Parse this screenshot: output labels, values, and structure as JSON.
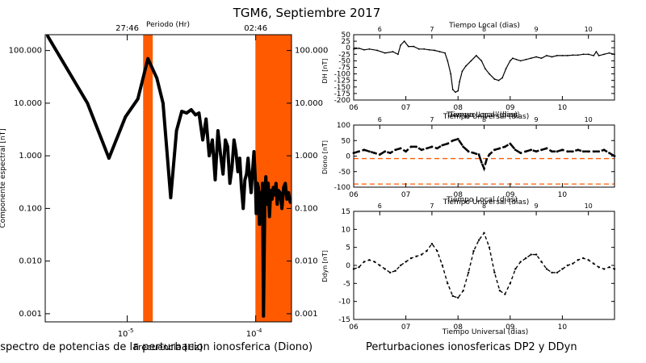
{
  "figure": {
    "title": "TGM6, Septiembre 2017",
    "caption_left": "Espectro de potencias de la perturbacion ionosferica (Diono)",
    "caption_right": "Perturbaciones ionosfericas DP2 y DDyn"
  },
  "colors": {
    "band": "#ff5a00",
    "line": "#000000",
    "dashed": "#ff5a00"
  },
  "chart_data": [
    {
      "type": "line",
      "name": "spectrum",
      "xlabel": "Frecuencia [Hz]",
      "ylabel": "Componente espectral [nT]",
      "top_axis_label": "Periodo (Hr)",
      "top_tick_labels": [
        "27:46",
        "02:46"
      ],
      "top_tick_freqs": [
        1e-05,
        0.0001
      ],
      "x_scale": "log",
      "y_scale": "log",
      "xlim": [
        2.3e-06,
        0.00019
      ],
      "ylim": [
        0.0007,
        200
      ],
      "x_tick_labels": [
        "10^-5",
        "10^-4"
      ],
      "y_tick_labels": [
        "100.000",
        "10.000",
        "1.000",
        "0.100",
        "0.010",
        "0.001"
      ],
      "bands": [
        [
          1.33e-05,
          1.58e-05
        ],
        [
          9.95e-05,
          0.00019
        ]
      ],
      "series": [
        {
          "x": [
            2.4e-06,
            4.9e-06,
            7.2e-06,
            9.7e-06,
            1.21e-05,
            1.45e-05,
            1.7e-05,
            1.9e-05,
            2.18e-05,
            2.42e-05,
            2.66e-05,
            2.9e-05,
            3.15e-05,
            3.4e-05,
            3.62e-05,
            3.87e-05,
            4.11e-05,
            4.35e-05,
            4.6e-05,
            4.84e-05,
            5.08e-05,
            5.32e-05,
            5.57e-05,
            5.81e-05,
            6.05e-05,
            6.3e-05,
            6.54e-05,
            6.78e-05,
            7.02e-05,
            7.27e-05,
            7.51e-05,
            7.75e-05,
            8e-05,
            8.24e-05,
            8.48e-05,
            8.72e-05,
            8.97e-05,
            9.21e-05,
            9.45e-05,
            9.7e-05,
            9.94e-05,
            0.000101,
            0.000103,
            0.000105,
            0.000107,
            0.000109,
            0.000111,
            0.000113,
            0.000115,
            0.000118,
            0.00012,
            0.000123,
            0.000125,
            0.000128,
            0.000131,
            0.000134,
            0.000137,
            0.00014,
            0.000144,
            0.000147,
            0.00015,
            0.000155,
            0.00016,
            0.000165,
            0.00017,
            0.000175,
            0.00018,
            0.000186
          ],
          "y": [
            190,
            10,
            0.9,
            5.5,
            12,
            70,
            30,
            10,
            0.16,
            3,
            7,
            6.5,
            7.5,
            6,
            6.5,
            2,
            5,
            1,
            2,
            0.35,
            3,
            1.1,
            0.45,
            2,
            1.5,
            0.3,
            0.6,
            2,
            1.2,
            0.5,
            0.9,
            0.25,
            0.1,
            0.35,
            0.45,
            0.9,
            0.4,
            0.2,
            0.5,
            1.2,
            0.35,
            0.08,
            0.3,
            0.25,
            0.05,
            0.2,
            0.06,
            0.3,
            0.0009,
            0.2,
            0.4,
            0.12,
            0.3,
            0.07,
            0.22,
            0.15,
            0.25,
            0.18,
            0.3,
            0.12,
            0.22,
            0.2,
            0.1,
            0.25,
            0.3,
            0.15,
            0.2,
            0.13
          ]
        }
      ]
    },
    {
      "type": "line",
      "name": "dh",
      "ylabel": "DH [nT]",
      "top_axis_label": "Tiempo Local (dias)",
      "top_tick_labels": [
        "6",
        "7",
        "8",
        "9",
        "10"
      ],
      "x_tick_labels": [
        "06",
        "07",
        "08",
        "09",
        "10"
      ],
      "xlim": [
        6,
        11
      ],
      "ylim": [
        -200,
        50
      ],
      "y_ticks": [
        50,
        25,
        0,
        -25,
        -50,
        -75,
        -100,
        -125,
        -150,
        -175,
        -200
      ],
      "series": [
        {
          "x": [
            6,
            6.1,
            6.2,
            6.3,
            6.45,
            6.6,
            6.75,
            6.85,
            6.9,
            6.97,
            7.05,
            7.15,
            7.25,
            7.35,
            7.45,
            7.55,
            7.65,
            7.75,
            7.8,
            7.86,
            7.9,
            7.95,
            8,
            8.03,
            8.08,
            8.15,
            8.25,
            8.35,
            8.45,
            8.52,
            8.6,
            8.7,
            8.78,
            8.85,
            8.92,
            9,
            9.05,
            9.12,
            9.2,
            9.3,
            9.4,
            9.5,
            9.6,
            9.7,
            9.8,
            9.9,
            10,
            10.1,
            10.2,
            10.3,
            10.4,
            10.5,
            10.6,
            10.65,
            10.7,
            10.8,
            10.9,
            11
          ],
          "y": [
            -5,
            -2,
            -8,
            -5,
            -10,
            -20,
            -15,
            -25,
            10,
            25,
            5,
            5,
            -5,
            -5,
            -8,
            -10,
            -15,
            -20,
            -50,
            -100,
            -160,
            -170,
            -165,
            -130,
            -90,
            -70,
            -50,
            -30,
            -50,
            -80,
            -100,
            -120,
            -125,
            -115,
            -80,
            -50,
            -40,
            -45,
            -50,
            -45,
            -40,
            -35,
            -40,
            -30,
            -35,
            -30,
            -30,
            -30,
            -28,
            -28,
            -25,
            -25,
            -30,
            -15,
            -30,
            -25,
            -20,
            -25
          ]
        }
      ]
    },
    {
      "type": "line",
      "name": "diono",
      "ylabel": "Diono [nT]",
      "top_axis_label": "Tiempo Local (dias)",
      "top_tick_labels": [
        "6",
        "7",
        "8",
        "9",
        "10"
      ],
      "x_tick_labels": [
        "06",
        "07",
        "08",
        "09",
        "10"
      ],
      "overlay_labels": [
        "Tiempo Universal (dias)"
      ],
      "xlim": [
        6,
        11
      ],
      "ylim": [
        -100,
        100
      ],
      "y_ticks": [
        100,
        50,
        0,
        -50,
        -100
      ],
      "thresholds": [
        -8,
        -90
      ],
      "series": [
        {
          "x": [
            6,
            6.1,
            6.2,
            6.3,
            6.4,
            6.5,
            6.6,
            6.7,
            6.8,
            6.9,
            7,
            7.1,
            7.2,
            7.3,
            7.4,
            7.5,
            7.6,
            7.7,
            7.8,
            7.9,
            8,
            8.1,
            8.2,
            8.3,
            8.4,
            8.45,
            8.5,
            8.55,
            8.6,
            8.7,
            8.8,
            8.9,
            9,
            9.1,
            9.2,
            9.3,
            9.4,
            9.5,
            9.6,
            9.7,
            9.8,
            9.9,
            10,
            10.1,
            10.2,
            10.3,
            10.4,
            10.5,
            10.6,
            10.7,
            10.8,
            10.9,
            11
          ],
          "y": [
            10,
            15,
            20,
            15,
            10,
            5,
            15,
            10,
            20,
            25,
            15,
            30,
            30,
            20,
            25,
            30,
            25,
            35,
            40,
            50,
            55,
            30,
            15,
            10,
            5,
            -20,
            -40,
            -10,
            5,
            20,
            25,
            30,
            40,
            20,
            10,
            15,
            20,
            15,
            20,
            25,
            15,
            15,
            20,
            15,
            15,
            20,
            15,
            15,
            15,
            15,
            20,
            10,
            0
          ]
        }
      ]
    },
    {
      "type": "line",
      "name": "ddyn",
      "ylabel": "Ddyn [nT]",
      "top_axis_label": "Tiempo Local (dias)",
      "top_tick_labels": [
        "6",
        "7",
        "8",
        "9",
        "10"
      ],
      "x_tick_labels": [
        "06",
        "07",
        "08",
        "09",
        "10"
      ],
      "overlay_labels": [
        "Tiempo Universal (dias)",
        "Tiempo Universal (dias)"
      ],
      "xlim": [
        6,
        11
      ],
      "ylim": [
        -15,
        15
      ],
      "y_ticks": [
        15,
        10,
        5,
        0,
        -5,
        -10,
        -15
      ],
      "series": [
        {
          "x": [
            6,
            6.1,
            6.2,
            6.3,
            6.4,
            6.5,
            6.6,
            6.7,
            6.8,
            6.9,
            7,
            7.1,
            7.2,
            7.3,
            7.4,
            7.5,
            7.6,
            7.7,
            7.8,
            7.9,
            8,
            8.1,
            8.2,
            8.3,
            8.4,
            8.5,
            8.6,
            8.7,
            8.8,
            8.9,
            9,
            9.1,
            9.2,
            9.3,
            9.4,
            9.5,
            9.6,
            9.7,
            9.8,
            9.9,
            10,
            10.1,
            10.2,
            10.3,
            10.4,
            10.5,
            10.6,
            10.7,
            10.8,
            10.9,
            11
          ],
          "y": [
            -1,
            -0.5,
            1,
            1.5,
            1,
            0,
            -1,
            -2,
            -1.5,
            0,
            1,
            2,
            2.5,
            3,
            4,
            6,
            4,
            0,
            -5,
            -8.5,
            -9,
            -7,
            -2,
            4,
            7,
            9,
            5,
            -2,
            -7,
            -8,
            -5,
            -1,
            1,
            2,
            3,
            3,
            1,
            -1,
            -2,
            -2,
            -1,
            0,
            0.5,
            1.5,
            2,
            1.5,
            0.5,
            -0.5,
            -1,
            -0.5,
            -1
          ]
        }
      ]
    }
  ]
}
